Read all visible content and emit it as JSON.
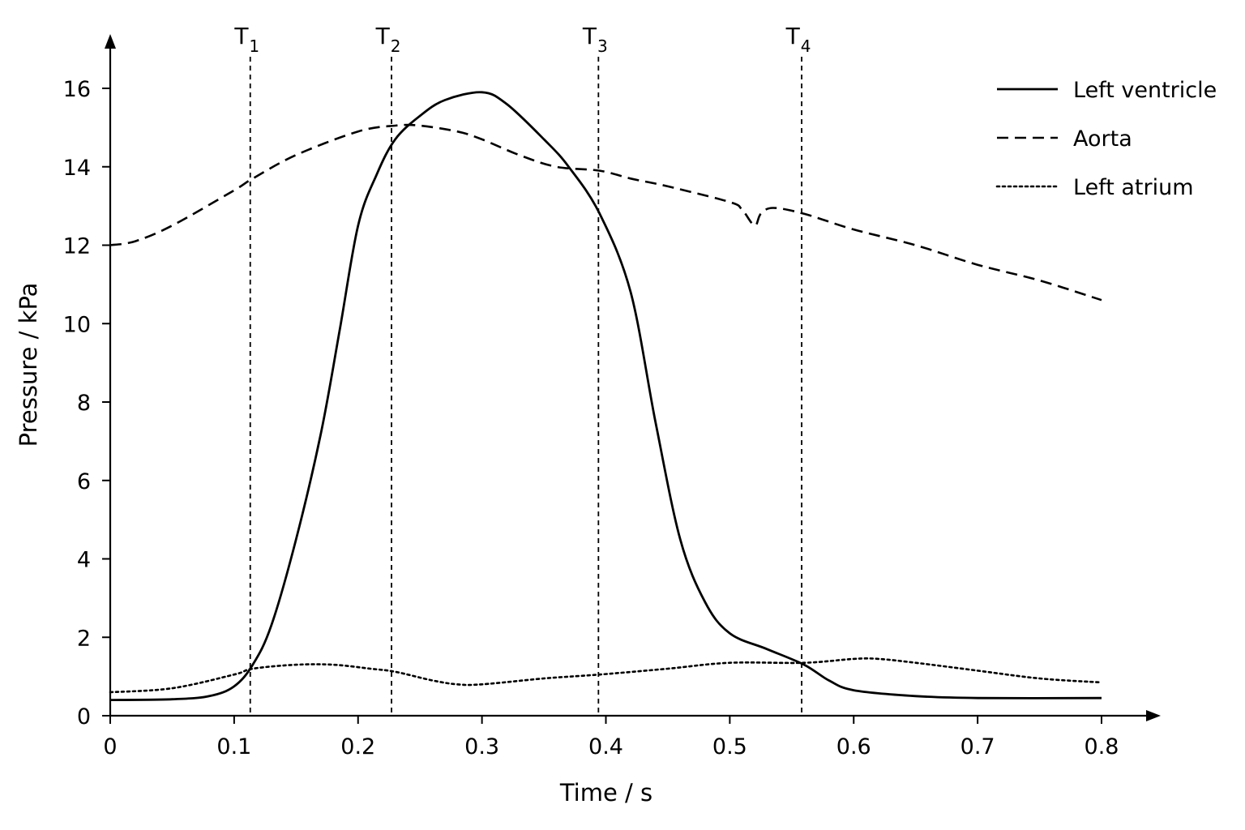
{
  "chart_data": {
    "type": "line",
    "title": "",
    "xlabel": "Time / s",
    "ylabel": "Pressure / kPa",
    "xlim": [
      0,
      0.8
    ],
    "ylim": [
      0,
      16
    ],
    "x_ticks": [
      0,
      0.1,
      0.2,
      0.3,
      0.4,
      0.5,
      0.6,
      0.7,
      0.8
    ],
    "x_tick_labels": [
      "0",
      "0.1",
      "0.2",
      "0.3",
      "0.4",
      "0.5",
      "0.6",
      "0.7",
      "0.8"
    ],
    "y_ticks": [
      0,
      2,
      4,
      6,
      8,
      10,
      12,
      14,
      16
    ],
    "y_tick_labels": [
      "0",
      "2",
      "4",
      "6",
      "8",
      "10",
      "12",
      "14",
      "16"
    ],
    "grid": false,
    "legend_position": "top-right",
    "series": [
      {
        "name": "Left ventricle",
        "style": "solid",
        "color": "#000000",
        "points": [
          [
            0,
            0.4
          ],
          [
            0.05,
            0.42
          ],
          [
            0.08,
            0.5
          ],
          [
            0.1,
            0.75
          ],
          [
            0.115,
            1.3
          ],
          [
            0.13,
            2.3
          ],
          [
            0.15,
            4.5
          ],
          [
            0.17,
            7.2
          ],
          [
            0.185,
            9.8
          ],
          [
            0.2,
            12.5
          ],
          [
            0.215,
            13.8
          ],
          [
            0.23,
            14.7
          ],
          [
            0.25,
            15.3
          ],
          [
            0.27,
            15.7
          ],
          [
            0.3,
            15.9
          ],
          [
            0.32,
            15.6
          ],
          [
            0.35,
            14.7
          ],
          [
            0.37,
            14.0
          ],
          [
            0.395,
            12.8
          ],
          [
            0.42,
            10.8
          ],
          [
            0.44,
            7.5
          ],
          [
            0.46,
            4.5
          ],
          [
            0.48,
            2.9
          ],
          [
            0.5,
            2.1
          ],
          [
            0.53,
            1.7
          ],
          [
            0.56,
            1.3
          ],
          [
            0.58,
            0.9
          ],
          [
            0.6,
            0.65
          ],
          [
            0.65,
            0.5
          ],
          [
            0.7,
            0.45
          ],
          [
            0.8,
            0.45
          ]
        ]
      },
      {
        "name": "Aorta",
        "style": "dashed",
        "color": "#000000",
        "points": [
          [
            0,
            12.0
          ],
          [
            0.02,
            12.1
          ],
          [
            0.05,
            12.5
          ],
          [
            0.1,
            13.4
          ],
          [
            0.115,
            13.7
          ],
          [
            0.15,
            14.3
          ],
          [
            0.2,
            14.9
          ],
          [
            0.23,
            15.05
          ],
          [
            0.25,
            15.05
          ],
          [
            0.28,
            14.9
          ],
          [
            0.3,
            14.7
          ],
          [
            0.33,
            14.3
          ],
          [
            0.36,
            14.0
          ],
          [
            0.395,
            13.9
          ],
          [
            0.42,
            13.7
          ],
          [
            0.45,
            13.5
          ],
          [
            0.5,
            13.1
          ],
          [
            0.51,
            12.9
          ],
          [
            0.52,
            12.5
          ],
          [
            0.525,
            12.8
          ],
          [
            0.535,
            12.95
          ],
          [
            0.56,
            12.8
          ],
          [
            0.6,
            12.4
          ],
          [
            0.65,
            12.0
          ],
          [
            0.7,
            11.5
          ],
          [
            0.75,
            11.1
          ],
          [
            0.8,
            10.6
          ]
        ]
      },
      {
        "name": "Left atrium",
        "style": "dotted",
        "color": "#000000",
        "points": [
          [
            0,
            0.6
          ],
          [
            0.05,
            0.7
          ],
          [
            0.1,
            1.05
          ],
          [
            0.115,
            1.2
          ],
          [
            0.15,
            1.3
          ],
          [
            0.18,
            1.3
          ],
          [
            0.21,
            1.2
          ],
          [
            0.23,
            1.12
          ],
          [
            0.26,
            0.9
          ],
          [
            0.28,
            0.8
          ],
          [
            0.3,
            0.8
          ],
          [
            0.35,
            0.95
          ],
          [
            0.395,
            1.05
          ],
          [
            0.45,
            1.2
          ],
          [
            0.5,
            1.35
          ],
          [
            0.56,
            1.35
          ],
          [
            0.6,
            1.45
          ],
          [
            0.62,
            1.45
          ],
          [
            0.65,
            1.35
          ],
          [
            0.7,
            1.15
          ],
          [
            0.75,
            0.95
          ],
          [
            0.8,
            0.85
          ]
        ]
      }
    ],
    "markers": [
      {
        "label": "T",
        "sub": "1",
        "x": 0.113
      },
      {
        "label": "T",
        "sub": "2",
        "x": 0.227
      },
      {
        "label": "T",
        "sub": "3",
        "x": 0.394
      },
      {
        "label": "T",
        "sub": "4",
        "x": 0.558
      }
    ]
  }
}
